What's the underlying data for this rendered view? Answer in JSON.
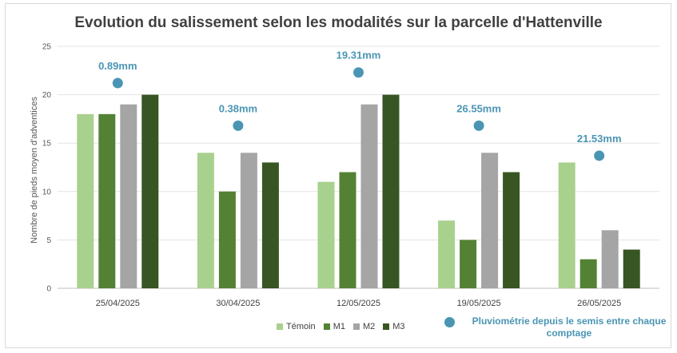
{
  "chart_data": {
    "type": "bar",
    "title": "Evolution du salissement selon les modalités sur la parcelle d'Hattenville",
    "xlabel": "",
    "ylabel": "Nombre de pieds moyen d'adventices",
    "ylim": [
      0,
      25
    ],
    "yticks": [
      0,
      5,
      10,
      15,
      20,
      25
    ],
    "grid": true,
    "categories": [
      "25/04/2025",
      "30/04/2025",
      "12/05/2025",
      "19/05/2025",
      "26/05/2025"
    ],
    "series": [
      {
        "name": "Témoin",
        "color": "#a9d18e",
        "values": [
          18,
          14,
          11,
          7,
          13
        ]
      },
      {
        "name": "M1",
        "color": "#548235",
        "values": [
          18,
          10,
          12,
          5,
          3
        ]
      },
      {
        "name": "M2",
        "color": "#a5a5a5",
        "values": [
          19,
          14,
          19,
          14,
          6
        ]
      },
      {
        "name": "M3",
        "color": "#375623",
        "values": [
          20,
          13,
          20,
          12,
          4
        ]
      }
    ],
    "rainfall": {
      "name": "Pluviométrie depuis le semis entre chaque comptage",
      "color": "#4a95b4",
      "labels": [
        "0.89mm",
        "0.38mm",
        "19.31mm",
        "26.55mm",
        "21.53mm"
      ],
      "marker_levels": [
        21.2,
        16.8,
        22.3,
        16.8,
        13.7
      ]
    }
  }
}
